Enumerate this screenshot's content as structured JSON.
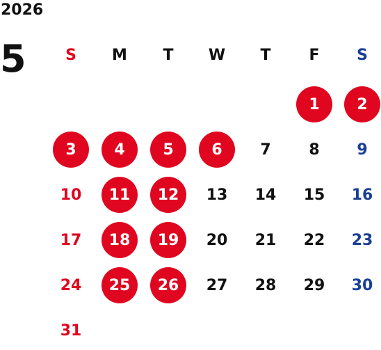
{
  "year": "2026",
  "month": "5",
  "weekdays": [
    "S",
    "M",
    "T",
    "W",
    "T",
    "F",
    "S"
  ],
  "colors": {
    "sunday": "#e0061f",
    "saturday": "#1a3f95",
    "weekday": "#111111",
    "highlight": "#e0061f"
  },
  "weeks": [
    [
      null,
      null,
      null,
      null,
      null,
      {
        "day": "1",
        "hl": true
      },
      {
        "day": "2",
        "hl": true
      }
    ],
    [
      {
        "day": "3",
        "hl": true
      },
      {
        "day": "4",
        "hl": true
      },
      {
        "day": "5",
        "hl": true
      },
      {
        "day": "6",
        "hl": true
      },
      {
        "day": "7",
        "hl": false
      },
      {
        "day": "8",
        "hl": false
      },
      {
        "day": "9",
        "hl": false
      }
    ],
    [
      {
        "day": "10",
        "hl": false
      },
      {
        "day": "11",
        "hl": true
      },
      {
        "day": "12",
        "hl": true
      },
      {
        "day": "13",
        "hl": false
      },
      {
        "day": "14",
        "hl": false
      },
      {
        "day": "15",
        "hl": false
      },
      {
        "day": "16",
        "hl": false
      }
    ],
    [
      {
        "day": "17",
        "hl": false
      },
      {
        "day": "18",
        "hl": true
      },
      {
        "day": "19",
        "hl": true
      },
      {
        "day": "20",
        "hl": false
      },
      {
        "day": "21",
        "hl": false
      },
      {
        "day": "22",
        "hl": false
      },
      {
        "day": "23",
        "hl": false
      }
    ],
    [
      {
        "day": "24",
        "hl": false
      },
      {
        "day": "25",
        "hl": true
      },
      {
        "day": "26",
        "hl": true
      },
      {
        "day": "27",
        "hl": false
      },
      {
        "day": "28",
        "hl": false
      },
      {
        "day": "29",
        "hl": false
      },
      {
        "day": "30",
        "hl": false
      }
    ],
    [
      {
        "day": "31",
        "hl": false
      },
      null,
      null,
      null,
      null,
      null,
      null
    ]
  ]
}
